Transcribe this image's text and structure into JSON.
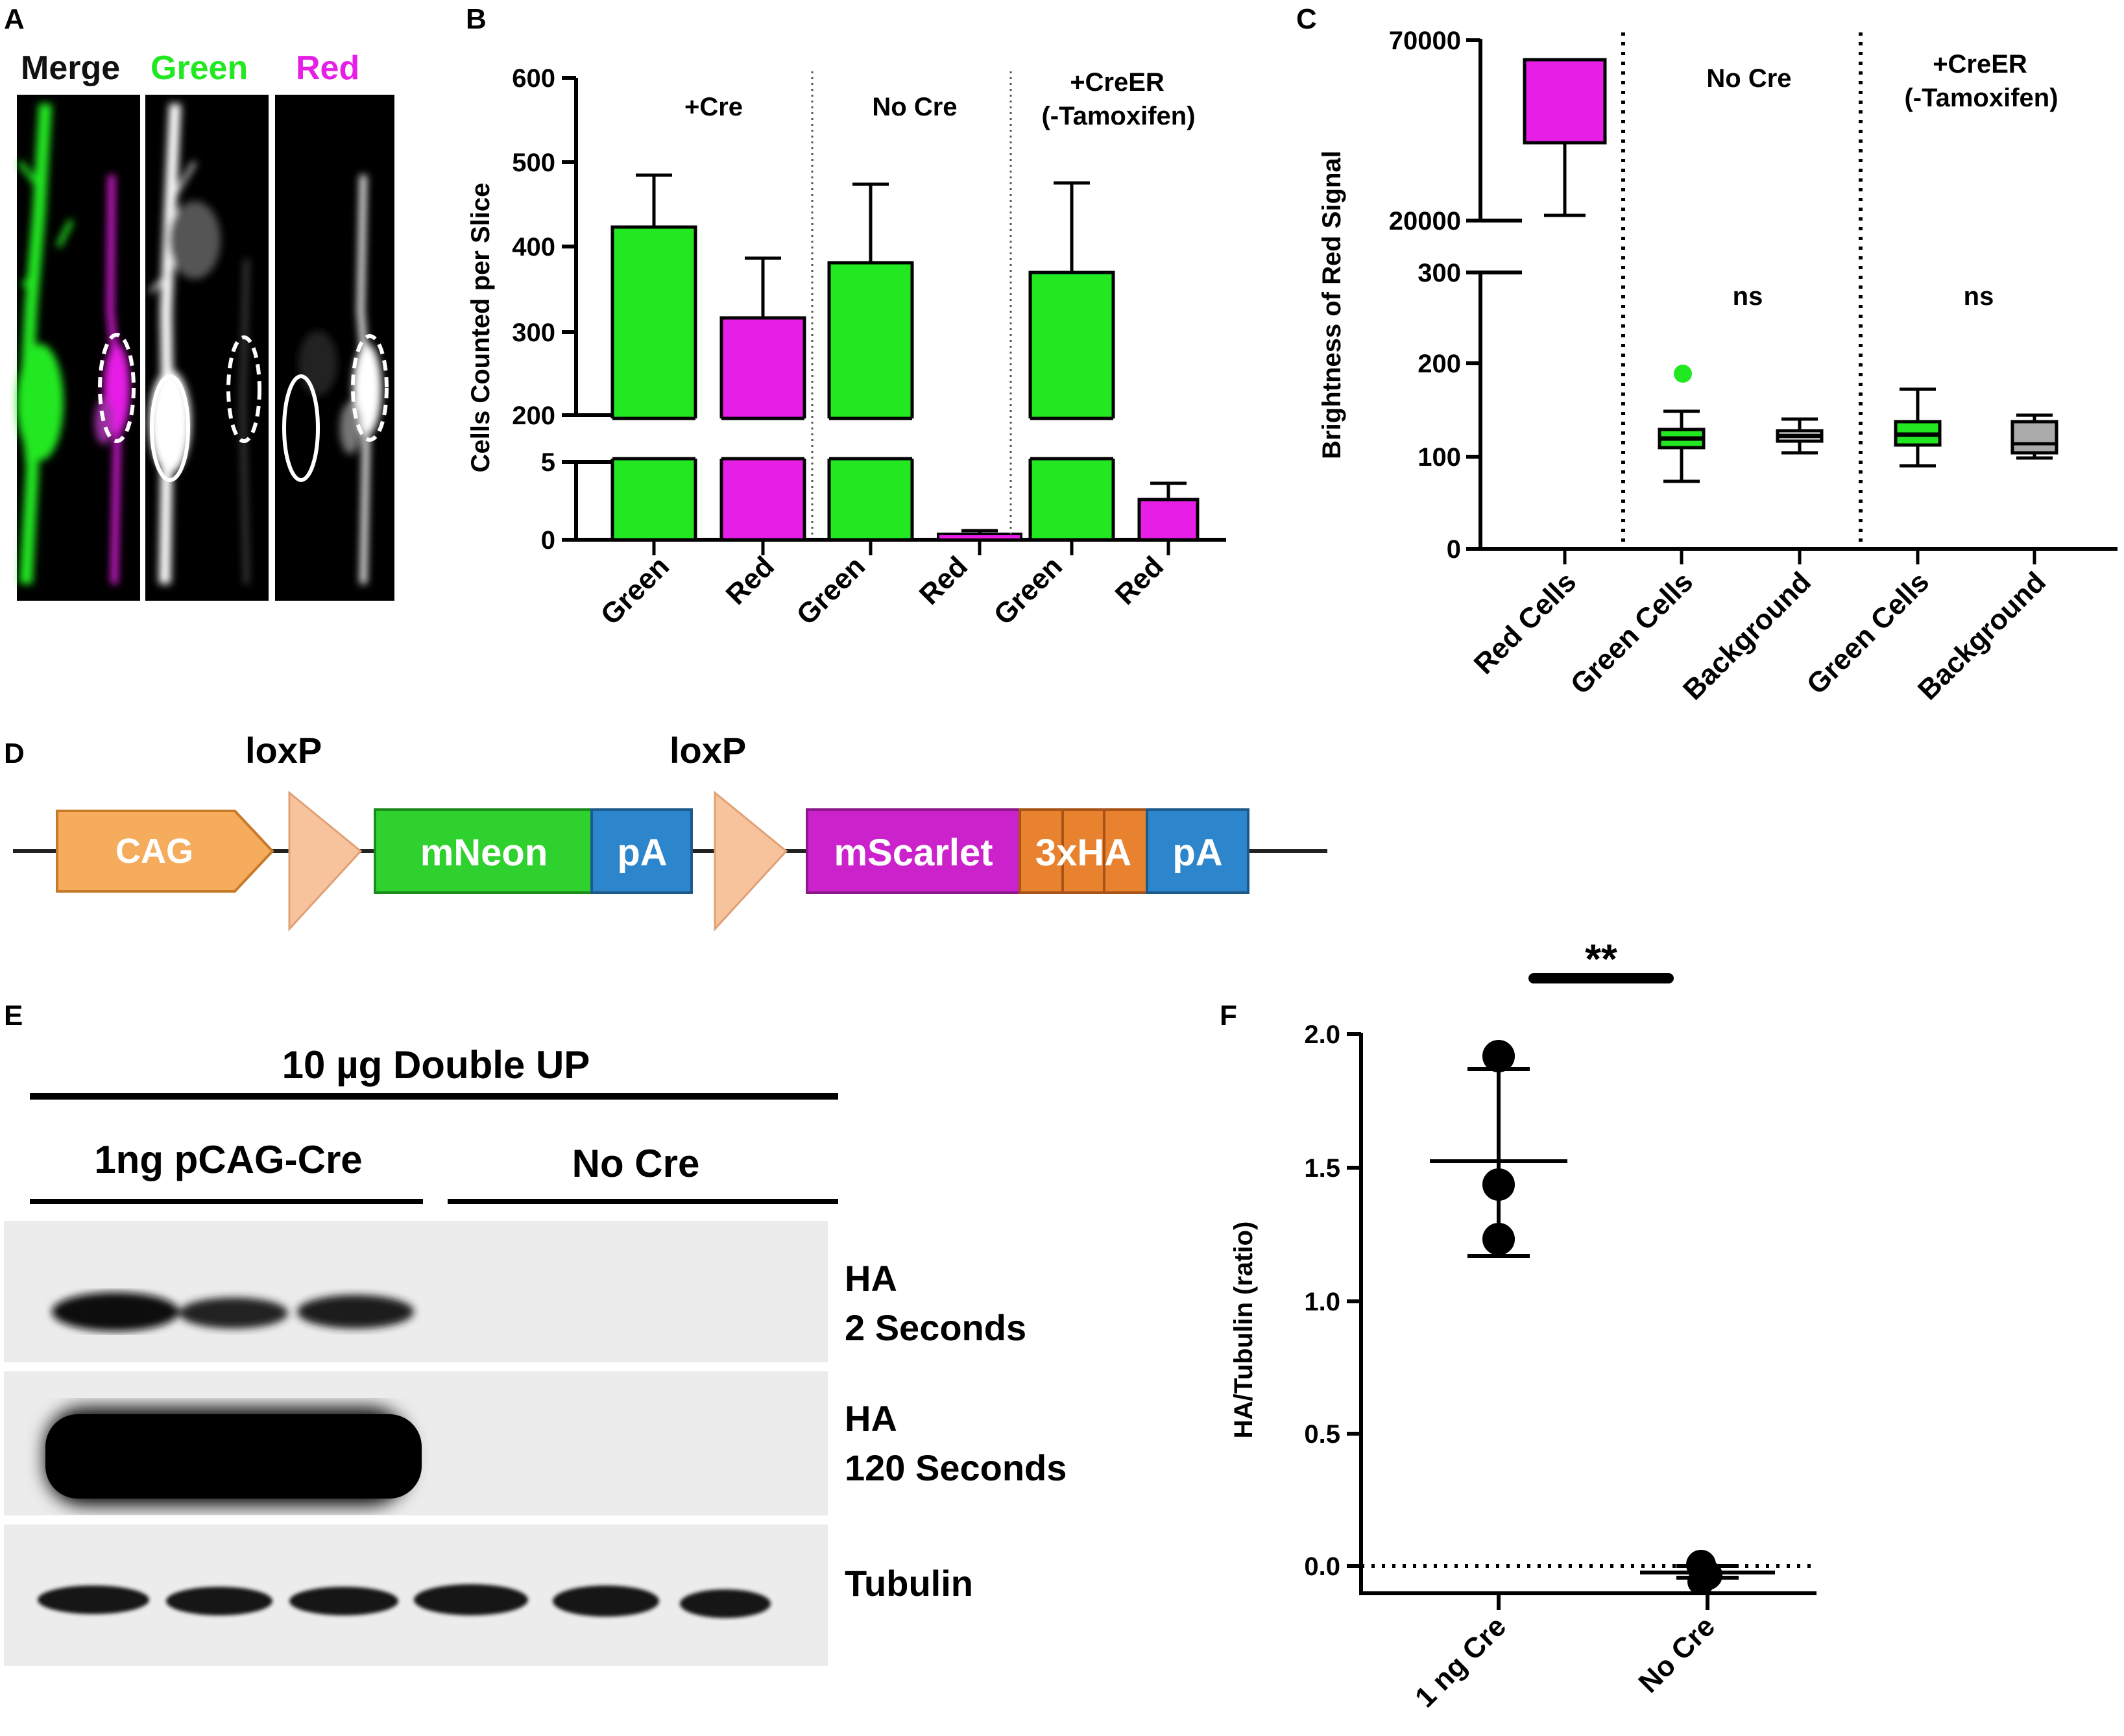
{
  "panels": {
    "A": {
      "letter": "A",
      "channels": [
        "Merge",
        "Green",
        "Red"
      ],
      "colors": {
        "green": "#22e822",
        "magenta": "#e61ee6",
        "black": "#111111"
      }
    },
    "B": {
      "letter": "B",
      "ylabel": "Cells Counted per Slice",
      "y_ticks_upper": [
        "600",
        "500",
        "400",
        "300",
        "200"
      ],
      "y_ticks_lower": [
        "5",
        "0"
      ],
      "group_labels": [
        "+Cre",
        "No Cre",
        "+CreER",
        "(-Tamoxifen)"
      ],
      "x_labels": [
        "Green",
        "Red",
        "Green",
        "Red",
        "Green",
        "Red"
      ]
    },
    "C": {
      "letter": "C",
      "ylabel": "Brightness of Red Signal",
      "y_ticks_upper": [
        "70000",
        "20000"
      ],
      "y_ticks_lower": [
        "300",
        "200",
        "100",
        "0"
      ],
      "group_labels": [
        "No Cre",
        "+CreER",
        "(-Tamoxifen)"
      ],
      "ns_labels": [
        "ns",
        "ns"
      ],
      "x_labels": [
        "Red Cells",
        "Green Cells",
        "Background",
        "Green Cells",
        "Background"
      ]
    },
    "D": {
      "letter": "D",
      "loxp": [
        "loxP",
        "loxP"
      ],
      "elements": [
        "CAG",
        "mNeon",
        "pA",
        "mScarlet",
        "3xHA",
        "pA"
      ],
      "colors": {
        "cag": "#f5ac5c",
        "loxp": "#f7c39c",
        "mneon": "#2ed12e",
        "pa": "#2d86cc",
        "mscarlet": "#cc22cc",
        "ha": "#e8822e"
      }
    },
    "E": {
      "letter": "E",
      "header": "10 µg Double UP",
      "group_left": "1ng pCAG-Cre",
      "group_right": "No Cre",
      "blot_labels": [
        {
          "line1": "HA",
          "line2": "2 Seconds"
        },
        {
          "line1": "HA",
          "line2": "120 Seconds"
        },
        {
          "line1": "Tubulin",
          "line2": ""
        }
      ]
    },
    "F": {
      "letter": "F",
      "ylabel": "HA/Tubulin (ratio)",
      "y_ticks": [
        "2.0",
        "1.5",
        "1.0",
        "0.5",
        "0.0"
      ],
      "x_labels": [
        "1 ng Cre",
        "No Cre"
      ],
      "significance": "**"
    }
  },
  "chart_data": [
    {
      "panel": "B",
      "type": "bar",
      "categories": [
        "Green",
        "Red",
        "Green",
        "Red",
        "Green",
        "Red"
      ],
      "groups": [
        "+Cre",
        "+Cre",
        "No Cre",
        "No Cre",
        "+CreER (-Tamoxifen)",
        "+CreER (-Tamoxifen)"
      ],
      "values": [
        423,
        317,
        380,
        0.5,
        369,
        2.6
      ],
      "error_upper": [
        484,
        387,
        473,
        0.8,
        475,
        3.6
      ],
      "colors": [
        "#22e822",
        "#e61ee6",
        "#22e822",
        "#e61ee6",
        "#22e822",
        "#e61ee6"
      ],
      "ylabel": "Cells Counted per Slice",
      "y_axis_broken": true,
      "ylim_lower": [
        0,
        5
      ],
      "ylim_upper": [
        200,
        600
      ]
    },
    {
      "panel": "C",
      "type": "box",
      "categories": [
        "Red Cells",
        "Green Cells",
        "Background",
        "Green Cells",
        "Background"
      ],
      "groups": [
        "+Cre",
        "No Cre",
        "No Cre",
        "+CreER (-Tamoxifen)",
        "+CreER (-Tamoxifen)"
      ],
      "boxes": [
        {
          "min": 21000,
          "q1": 45000,
          "median": 45000,
          "q3": 66000,
          "max": 66000,
          "color": "#e61ee6"
        },
        {
          "min": 94,
          "q1": 109,
          "median": 121,
          "q3": 130,
          "max": 148,
          "color": "#22e822",
          "outliers": [
            190
          ]
        },
        {
          "min": 106,
          "q1": 118,
          "median": 125,
          "q3": 130,
          "max": 140,
          "color": "#22e822"
        },
        {
          "min": 92,
          "q1": 112,
          "median": 124,
          "q3": 138,
          "max": 172,
          "color": "#22e822"
        },
        {
          "min": 98,
          "q1": 103,
          "median": 114,
          "q3": 138,
          "max": 146,
          "color": "#aaaaaa"
        }
      ],
      "ylabel": "Brightness of Red Signal",
      "y_axis_broken": true,
      "ylim_lower": [
        0,
        300
      ],
      "ylim_upper": [
        20000,
        70000
      ]
    },
    {
      "panel": "F",
      "type": "scatter",
      "categories": [
        "1 ng Cre",
        "No Cre"
      ],
      "points": [
        [
          1.91,
          1.43,
          1.23
        ],
        [
          0.0,
          -0.02,
          -0.04
        ]
      ],
      "means": [
        1.52,
        -0.02
      ],
      "sd": [
        0.35,
        0.02
      ],
      "ylabel": "HA/Tubulin (ratio)",
      "ylim": [
        -0.1,
        2.0
      ],
      "reference_line": 0.0,
      "significance": "**"
    }
  ]
}
